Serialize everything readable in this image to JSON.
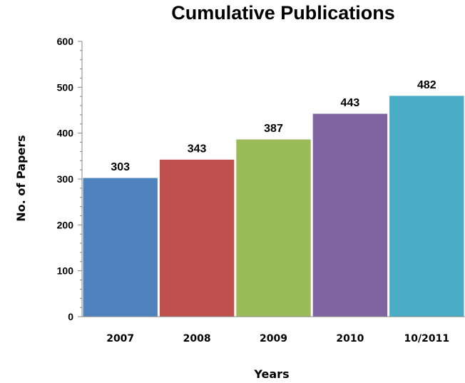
{
  "chart_data": {
    "type": "bar",
    "title": "Cumulative Publications",
    "xlabel": "Years",
    "ylabel": "No. of Papers",
    "categories": [
      "2007",
      "2008",
      "2009",
      "2010",
      "10/2011"
    ],
    "values": [
      303,
      343,
      387,
      443,
      482
    ],
    "data_labels": [
      "303",
      "343",
      "387",
      "443",
      "482"
    ],
    "ylim": [
      0,
      600
    ],
    "yticks": [
      "0",
      "100",
      "200",
      "300",
      "400",
      "500",
      "600"
    ],
    "grid": false,
    "legend": "none",
    "colors": [
      "#4f81bd",
      "#c0504d",
      "#9bbb59",
      "#8064a2",
      "#4bacc6"
    ]
  }
}
